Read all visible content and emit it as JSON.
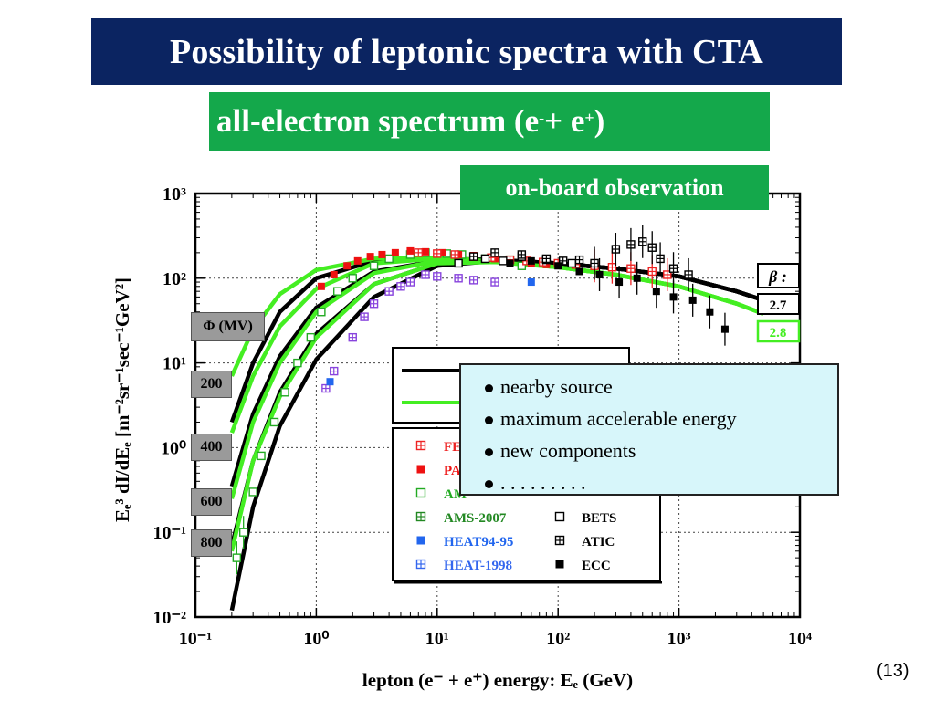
{
  "title": "Possibility of leptonic spectra with CTA",
  "subtitle": {
    "text": "all-electron spectrum (e",
    "sup1": "-",
    "mid": " + e",
    "sup2": "+",
    "end": ")"
  },
  "badge": "on-board observation",
  "page_number": "(13)",
  "callout": {
    "items": [
      "nearby source",
      "maximum accelerable energy",
      "new components",
      ". . . . . . . . ."
    ]
  },
  "phi_header": "Φ (MV)",
  "beta_header": "β :",
  "chart_data": {
    "type": "scatter",
    "xlabel": "lepton (e⁻ + e⁺) energy: Eₑ (GeV)",
    "ylabel": "Eₑ³ dI/dEₑ [m⁻²sr⁻¹sec⁻¹GeV²]",
    "x_log": true,
    "y_log": true,
    "xlim": [
      0.1,
      10000
    ],
    "ylim": [
      0.01,
      1000
    ],
    "x_ticks": [
      "10⁻¹",
      "10⁰",
      "10¹",
      "10²",
      "10³",
      "10⁴"
    ],
    "y_ticks": [
      "10⁻²",
      "10⁻¹",
      "10⁰",
      "10¹",
      "10²",
      "10³"
    ],
    "grid": true,
    "modulation_labels": [
      "200",
      "400",
      "600",
      "800"
    ],
    "model_curves": [
      {
        "beta": "2.7",
        "color": "#000000",
        "phi": 200,
        "points": [
          [
            0.2,
            2.0
          ],
          [
            0.3,
            10
          ],
          [
            0.5,
            40
          ],
          [
            1,
            100
          ],
          [
            3,
            160
          ],
          [
            10,
            170
          ],
          [
            30,
            165
          ],
          [
            100,
            150
          ],
          [
            300,
            130
          ],
          [
            1000,
            105
          ],
          [
            3000,
            70
          ],
          [
            5000,
            55
          ]
        ]
      },
      {
        "beta": "2.8",
        "color": "#44ee22",
        "phi": 200,
        "points": [
          [
            0.2,
            7
          ],
          [
            0.3,
            25
          ],
          [
            0.5,
            65
          ],
          [
            1,
            125
          ],
          [
            3,
            170
          ],
          [
            10,
            175
          ],
          [
            30,
            160
          ],
          [
            100,
            135
          ],
          [
            300,
            110
          ],
          [
            1000,
            80
          ],
          [
            3000,
            50
          ],
          [
            5000,
            38
          ]
        ]
      },
      {
        "beta": "2.7",
        "color": "#000000",
        "phi": 400,
        "points": [
          [
            0.2,
            0.35
          ],
          [
            0.3,
            2.5
          ],
          [
            0.5,
            12
          ],
          [
            1,
            45
          ],
          [
            3,
            120
          ],
          [
            10,
            160
          ],
          [
            30,
            165
          ],
          [
            100,
            150
          ],
          [
            300,
            130
          ],
          [
            1000,
            105
          ],
          [
            3000,
            70
          ],
          [
            5000,
            55
          ]
        ]
      },
      {
        "beta": "2.8",
        "color": "#44ee22",
        "phi": 400,
        "points": [
          [
            0.2,
            1.5
          ],
          [
            0.3,
            7
          ],
          [
            0.5,
            27
          ],
          [
            1,
            75
          ],
          [
            3,
            150
          ],
          [
            10,
            170
          ],
          [
            30,
            160
          ],
          [
            100,
            135
          ],
          [
            300,
            110
          ],
          [
            1000,
            80
          ],
          [
            3000,
            50
          ],
          [
            5000,
            38
          ]
        ]
      },
      {
        "beta": "2.7",
        "color": "#000000",
        "phi": 600,
        "points": [
          [
            0.2,
            0.07
          ],
          [
            0.3,
            0.7
          ],
          [
            0.5,
            4.5
          ],
          [
            1,
            22
          ],
          [
            3,
            85
          ],
          [
            10,
            150
          ],
          [
            30,
            163
          ],
          [
            100,
            150
          ],
          [
            300,
            130
          ],
          [
            1000,
            105
          ],
          [
            3000,
            70
          ],
          [
            5000,
            55
          ]
        ]
      },
      {
        "beta": "2.8",
        "color": "#44ee22",
        "phi": 600,
        "points": [
          [
            0.2,
            0.25
          ],
          [
            0.3,
            2
          ],
          [
            0.5,
            10
          ],
          [
            1,
            40
          ],
          [
            3,
            115
          ],
          [
            10,
            160
          ],
          [
            30,
            158
          ],
          [
            100,
            135
          ],
          [
            300,
            110
          ],
          [
            1000,
            80
          ],
          [
            3000,
            50
          ],
          [
            5000,
            38
          ]
        ]
      },
      {
        "beta": "2.7",
        "color": "#000000",
        "phi": 800,
        "points": [
          [
            0.2,
            0.012
          ],
          [
            0.3,
            0.2
          ],
          [
            0.5,
            1.8
          ],
          [
            1,
            11
          ],
          [
            3,
            60
          ],
          [
            10,
            140
          ],
          [
            30,
            160
          ],
          [
            100,
            150
          ],
          [
            300,
            130
          ],
          [
            1000,
            105
          ],
          [
            3000,
            70
          ],
          [
            5000,
            55
          ]
        ]
      },
      {
        "beta": "2.8",
        "color": "#44ee22",
        "phi": 800,
        "points": [
          [
            0.2,
            0.06
          ],
          [
            0.3,
            0.7
          ],
          [
            0.5,
            4
          ],
          [
            1,
            20
          ],
          [
            3,
            85
          ],
          [
            10,
            150
          ],
          [
            30,
            155
          ],
          [
            100,
            135
          ],
          [
            300,
            110
          ],
          [
            1000,
            80
          ],
          [
            3000,
            50
          ],
          [
            5000,
            38
          ]
        ]
      }
    ],
    "legend_curves": [
      {
        "color": "#000000",
        "label": ""
      },
      {
        "color": "#44ee22",
        "label": ""
      }
    ],
    "legend_left": [
      {
        "name": "FE",
        "color": "#ee2222",
        "marker": "plus-square"
      },
      {
        "name": "PA",
        "color": "#ee1111",
        "marker": "filled-square"
      },
      {
        "name": "AM",
        "color": "#22aa22",
        "marker": "open-square"
      },
      {
        "name": "AMS-2007",
        "color": "#228822",
        "marker": "plus-square"
      },
      {
        "name": "HEAT94-95",
        "color": "#2266ee",
        "marker": "filled-square"
      },
      {
        "name": "HEAT-1998",
        "color": "#3366ee",
        "marker": "plus-square"
      }
    ],
    "legend_right": [
      {
        "name": "BETS",
        "color": "#000000",
        "marker": "open-square"
      },
      {
        "name": "ATIC",
        "color": "#000000",
        "marker": "plus-square"
      },
      {
        "name": "ECC",
        "color": "#000000",
        "marker": "filled-square"
      }
    ],
    "series": [
      {
        "name": "AMS-2007",
        "color": "#22aa22",
        "marker": "open-square",
        "points": [
          [
            0.22,
            0.05
          ],
          [
            0.25,
            0.1
          ],
          [
            0.3,
            0.3
          ],
          [
            0.35,
            0.8
          ],
          [
            0.45,
            2
          ],
          [
            0.55,
            4.5
          ],
          [
            0.7,
            10
          ],
          [
            0.9,
            20
          ],
          [
            1.1,
            40
          ],
          [
            1.5,
            70
          ],
          [
            2,
            100
          ],
          [
            3,
            140
          ],
          [
            4,
            170
          ],
          [
            6,
            190
          ],
          [
            8,
            200
          ],
          [
            12,
            195
          ],
          [
            16,
            190
          ],
          [
            20,
            180
          ],
          [
            25,
            170
          ],
          [
            30,
            175
          ],
          [
            40,
            165
          ],
          [
            50,
            140
          ]
        ]
      },
      {
        "name": "PAMELA",
        "color": "#ee1111",
        "marker": "filled-square",
        "points": [
          [
            1.1,
            80
          ],
          [
            1.4,
            110
          ],
          [
            1.8,
            140
          ],
          [
            2.2,
            160
          ],
          [
            2.8,
            180
          ],
          [
            3.5,
            190
          ],
          [
            4.5,
            200
          ],
          [
            6,
            210
          ],
          [
            8,
            205
          ],
          [
            11,
            200
          ],
          [
            15,
            190
          ],
          [
            20,
            185
          ],
          [
            30,
            170
          ],
          [
            40,
            160
          ],
          [
            60,
            150
          ],
          [
            80,
            145
          ]
        ]
      },
      {
        "name": "FERMI",
        "color": "#ee2222",
        "marker": "plus-square",
        "points": [
          [
            7,
            200
          ],
          [
            10,
            195
          ],
          [
            14,
            190
          ],
          [
            20,
            180
          ],
          [
            28,
            175
          ],
          [
            40,
            165
          ],
          [
            55,
            160
          ],
          [
            75,
            155
          ],
          [
            100,
            150
          ],
          [
            140,
            145
          ],
          [
            200,
            140
          ],
          [
            280,
            135
          ],
          [
            400,
            130
          ],
          [
            600,
            120
          ],
          [
            800,
            110
          ]
        ]
      },
      {
        "name": "HEAT-1998",
        "color": "#8844dd",
        "marker": "plus-square",
        "points": [
          [
            1.2,
            5
          ],
          [
            1.4,
            8
          ],
          [
            2,
            20
          ],
          [
            2.5,
            35
          ],
          [
            3,
            50
          ],
          [
            4,
            70
          ],
          [
            5,
            80
          ],
          [
            6,
            90
          ],
          [
            8,
            110
          ],
          [
            10,
            105
          ],
          [
            15,
            100
          ],
          [
            20,
            95
          ],
          [
            30,
            90
          ]
        ]
      },
      {
        "name": "HEAT94-95",
        "color": "#2266ee",
        "marker": "filled-square",
        "points": [
          [
            1.3,
            6
          ],
          [
            60,
            90
          ]
        ]
      },
      {
        "name": "BETS",
        "color": "#000000",
        "marker": "open-square",
        "points": [
          [
            15,
            150
          ],
          [
            25,
            170
          ],
          [
            35,
            160
          ],
          [
            50,
            180
          ],
          [
            80,
            165
          ],
          [
            130,
            150
          ]
        ]
      },
      {
        "name": "ATIC",
        "color": "#000000",
        "marker": "plus-square",
        "points": [
          [
            20,
            180
          ],
          [
            30,
            200
          ],
          [
            50,
            190
          ],
          [
            80,
            170
          ],
          [
            110,
            160
          ],
          [
            150,
            165
          ],
          [
            200,
            150
          ],
          [
            300,
            220
          ],
          [
            400,
            250
          ],
          [
            500,
            270
          ],
          [
            600,
            230
          ],
          [
            700,
            170
          ],
          [
            900,
            130
          ],
          [
            1200,
            110
          ]
        ]
      },
      {
        "name": "ECC",
        "color": "#000000",
        "marker": "filled-square",
        "points": [
          [
            40,
            150
          ],
          [
            60,
            160
          ],
          [
            100,
            140
          ],
          [
            150,
            120
          ],
          [
            220,
            110
          ],
          [
            320,
            90
          ],
          [
            450,
            100
          ],
          [
            650,
            70
          ],
          [
            900,
            60
          ],
          [
            1300,
            55
          ],
          [
            1800,
            40
          ],
          [
            2400,
            25
          ]
        ]
      }
    ]
  }
}
